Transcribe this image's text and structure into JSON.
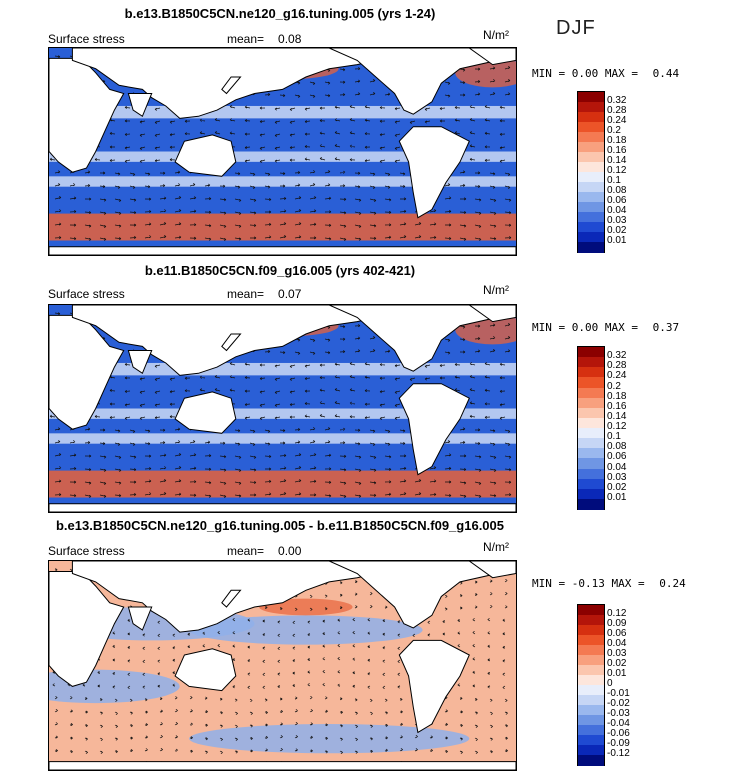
{
  "season": "DJF",
  "panels": [
    {
      "title": "b.e13.B1850C5CN.ne120_g16.tuning.005 (yrs 1-24)",
      "field_label": "Surface stress",
      "mean_label": "mean=",
      "mean_value": "0.08",
      "unit": "N/m²",
      "min_label": "MIN =",
      "min_value": "0.00",
      "max_label": "MAX =",
      "max_value": "0.44",
      "colorbar": {
        "labels": [
          "0.32",
          "0.28",
          "0.24",
          "0.2",
          "0.18",
          "0.16",
          "0.14",
          "0.12",
          "0.1",
          "0.08",
          "0.06",
          "0.04",
          "0.03",
          "0.02",
          "0.01"
        ],
        "colors": [
          "#8b0000",
          "#b4150a",
          "#d63010",
          "#ec5428",
          "#f47a52",
          "#f8a07e",
          "#fbc6ae",
          "#fde6dc",
          "#e8eefb",
          "#c6d6f5",
          "#9ab8ee",
          "#6f96e4",
          "#4470dc",
          "#1f4ad2",
          "#0a28b8",
          "#000c7c"
        ]
      }
    },
    {
      "title": "b.e11.B1850C5CN.f09_g16.005 (yrs 402-421)",
      "field_label": "Surface stress",
      "mean_label": "mean=",
      "mean_value": "0.07",
      "unit": "N/m²",
      "min_label": "MIN =",
      "min_value": "0.00",
      "max_label": "MAX =",
      "max_value": "0.37",
      "colorbar": {
        "labels": [
          "0.32",
          "0.28",
          "0.24",
          "0.2",
          "0.18",
          "0.16",
          "0.14",
          "0.12",
          "0.1",
          "0.08",
          "0.06",
          "0.04",
          "0.03",
          "0.02",
          "0.01"
        ],
        "colors": [
          "#8b0000",
          "#b4150a",
          "#d63010",
          "#ec5428",
          "#f47a52",
          "#f8a07e",
          "#fbc6ae",
          "#fde6dc",
          "#e8eefb",
          "#c6d6f5",
          "#9ab8ee",
          "#6f96e4",
          "#4470dc",
          "#1f4ad2",
          "#0a28b8",
          "#000c7c"
        ]
      }
    },
    {
      "title": "b.e13.B1850C5CN.ne120_g16.tuning.005 - b.e11.B1850C5CN.f09_g16.005",
      "field_label": "Surface stress",
      "mean_label": "mean=",
      "mean_value": "0.00",
      "unit": "N/m²",
      "min_label": "MIN =",
      "min_value": "-0.13",
      "max_label": "MAX =",
      "max_value": "0.24",
      "colorbar": {
        "labels": [
          "0.12",
          "0.09",
          "0.06",
          "0.04",
          "0.03",
          "0.02",
          "0.01",
          "0",
          "-0.01",
          "-0.02",
          "-0.03",
          "-0.04",
          "-0.06",
          "-0.09",
          "-0.12"
        ],
        "colors": [
          "#8b0000",
          "#b4150a",
          "#d63010",
          "#ec5428",
          "#f47a52",
          "#f8a07e",
          "#fbc6ae",
          "#fde6dc",
          "#e8eefb",
          "#c6d6f5",
          "#9ab8ee",
          "#6f96e4",
          "#4470dc",
          "#1f4ad2",
          "#0a28b8",
          "#000c7c"
        ]
      }
    }
  ],
  "map_style": {
    "ocean_base": [
      "#2a5fd6",
      "#3566d8",
      "#eef3fb"
    ],
    "jet_color": "#e8623a",
    "diff_neg": "#8fb0ea",
    "diff_pos": "#f6b79a",
    "land": "#ffffff",
    "coast": "#000000"
  }
}
